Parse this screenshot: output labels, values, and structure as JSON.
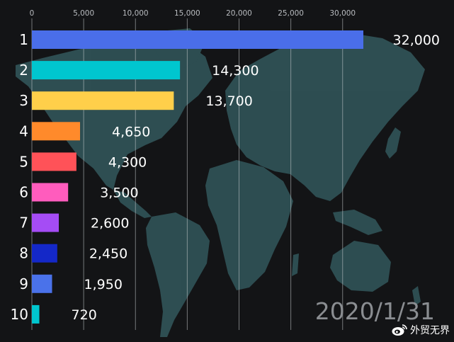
{
  "chart_data": {
    "type": "bar",
    "orientation": "horizontal",
    "categories": [
      "1",
      "2",
      "3",
      "4",
      "5",
      "6",
      "7",
      "8",
      "9",
      "10"
    ],
    "values": [
      32000,
      14300,
      13700,
      4650,
      4300,
      3500,
      2600,
      2450,
      1950,
      720
    ],
    "value_labels": [
      "32,000",
      "14,300",
      "13,700",
      "4,650",
      "4,300",
      "3,500",
      "2,600",
      "2,450",
      "1,950",
      "720"
    ],
    "bar_colors": [
      "#4a6ee9",
      "#00c6cf",
      "#ffcf4a",
      "#ff8a2b",
      "#ff5258",
      "#ff5cbd",
      "#a54cf5",
      "#1428c8",
      "#4a72ea",
      "#00c6cf"
    ],
    "x_ticks": [
      0,
      5000,
      10000,
      15000,
      20000,
      25000,
      30000
    ],
    "x_tick_labels": [
      "0",
      "5,000",
      "10,000",
      "15,000",
      "20,000",
      "25,000",
      "30,000"
    ],
    "xlim": [
      0,
      32000
    ],
    "grid": true,
    "axis_position": "top",
    "date_label": "2020/1/31",
    "background_image": "world-map",
    "map_color": "#2f5155",
    "background_color": "#131416"
  },
  "watermark": {
    "text": "外贸无界",
    "icon": "weibo-icon"
  }
}
